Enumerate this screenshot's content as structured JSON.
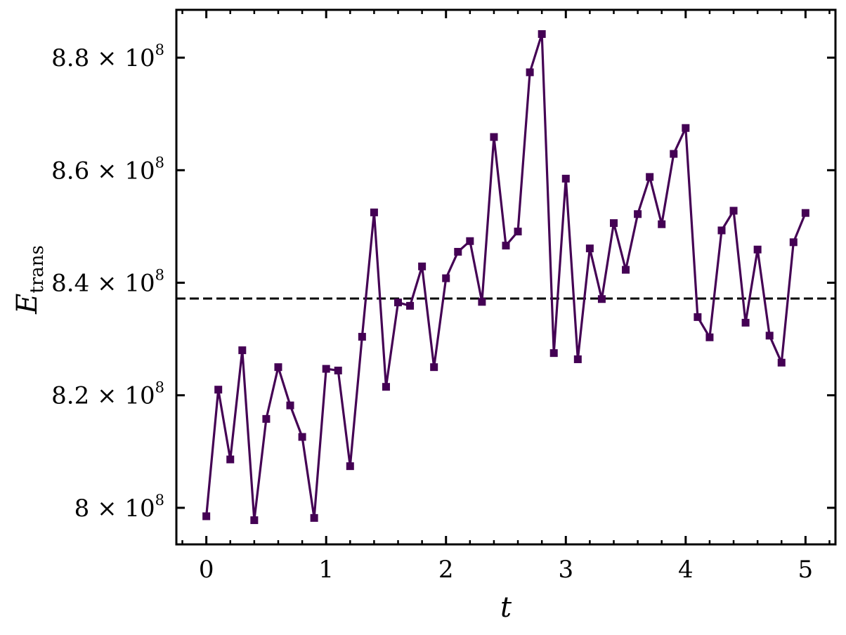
{
  "chart_data": {
    "type": "line",
    "xlabel": "t",
    "ylabel": {
      "main": "E",
      "subscript": "trans"
    },
    "xlim": [
      -0.25,
      5.25
    ],
    "ylim": [
      793500000,
      888500000
    ],
    "x_ticks": [
      {
        "value": 0,
        "label": "0"
      },
      {
        "value": 1,
        "label": "1"
      },
      {
        "value": 2,
        "label": "2"
      },
      {
        "value": 3,
        "label": "3"
      },
      {
        "value": 4,
        "label": "4"
      },
      {
        "value": 5,
        "label": "5"
      }
    ],
    "y_ticks": [
      {
        "value": 800000000,
        "mantissa": "8",
        "base": "× 10",
        "exponent": "8"
      },
      {
        "value": 820000000,
        "mantissa": "8.2",
        "base": "× 10",
        "exponent": "8"
      },
      {
        "value": 840000000,
        "mantissa": "8.4",
        "base": "× 10",
        "exponent": "8"
      },
      {
        "value": 860000000,
        "mantissa": "8.6",
        "base": "× 10",
        "exponent": "8"
      },
      {
        "value": 880000000,
        "mantissa": "8.8",
        "base": "× 10",
        "exponent": "8"
      }
    ],
    "series": [
      {
        "color": "#440154",
        "marker": "square",
        "x": [
          0,
          0.1,
          0.2,
          0.3,
          0.4,
          0.5,
          0.6,
          0.7,
          0.8,
          0.9,
          1.0,
          1.1,
          1.2,
          1.3,
          1.4,
          1.5,
          1.6,
          1.7,
          1.8,
          1.9,
          2.0,
          2.1,
          2.2,
          2.3,
          2.4,
          2.5,
          2.6,
          2.7,
          2.8,
          2.9,
          3.0,
          3.1,
          3.2,
          3.3,
          3.4,
          3.5,
          3.6,
          3.7,
          3.8,
          3.9,
          4.0,
          4.1,
          4.2,
          4.3,
          4.4,
          4.5,
          4.6,
          4.7,
          4.8,
          4.9,
          5.0
        ],
        "y": [
          798500000,
          821000000,
          808600000,
          828000000,
          797800000,
          815800000,
          825000000,
          818200000,
          812600000,
          798200000,
          824700000,
          824400000,
          807400000,
          830400000,
          852500000,
          821500000,
          836500000,
          835900000,
          842900000,
          825000000,
          840800000,
          845500000,
          847400000,
          836600000,
          865900000,
          846600000,
          849100000,
          877400000,
          884200000,
          827500000,
          858500000,
          826400000,
          846100000,
          837100000,
          850600000,
          842300000,
          852200000,
          858800000,
          850400000,
          862900000,
          867500000,
          833900000,
          830300000,
          849300000,
          852800000,
          832900000,
          845900000,
          830600000,
          825800000,
          847200000,
          852400000
        ]
      }
    ],
    "reference_lines": [
      {
        "orientation": "horizontal",
        "value": 837200000,
        "style": "dashed",
        "color": "#000000"
      }
    ],
    "grid": false,
    "legend": false
  }
}
